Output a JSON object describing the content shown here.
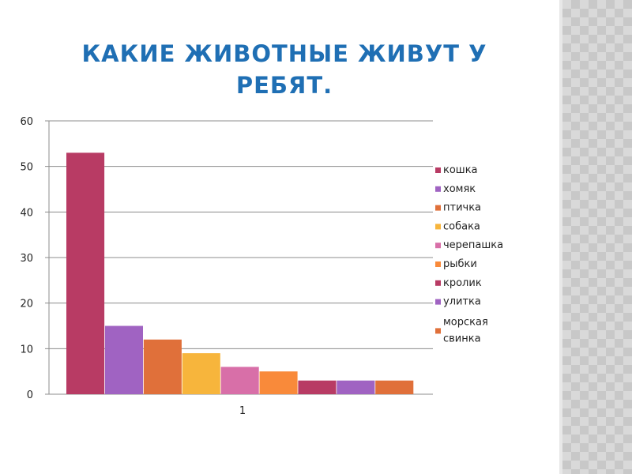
{
  "slide": {
    "title": "КАКИЕ ЖИВОТНЫЕ ЖИВУТ У РЕБЯТ."
  },
  "chart_data": {
    "type": "bar",
    "title": "КАКИЕ ЖИВОТНЫЕ ЖИВУТ У РЕБЯТ.",
    "categories": [
      "1"
    ],
    "ylim": [
      0,
      60
    ],
    "yticks": [
      0,
      10,
      20,
      30,
      40,
      50,
      60
    ],
    "grid": true,
    "legend_position": "right",
    "series": [
      {
        "name": "кошка",
        "values": [
          53
        ],
        "color": "#b83b64"
      },
      {
        "name": "хомяк",
        "values": [
          15
        ],
        "color": "#a063c2"
      },
      {
        "name": "птичка",
        "values": [
          12
        ],
        "color": "#e0703a"
      },
      {
        "name": "собака",
        "values": [
          9
        ],
        "color": "#f7b53c"
      },
      {
        "name": "черепашка",
        "values": [
          6
        ],
        "color": "#d86fa8"
      },
      {
        "name": "рыбки",
        "values": [
          5
        ],
        "color": "#f98a3a"
      },
      {
        "name": "кролик",
        "values": [
          3
        ],
        "color": "#b83b64"
      },
      {
        "name": "улитка",
        "values": [
          3
        ],
        "color": "#a063c2"
      },
      {
        "name": "морская свинка",
        "values": [
          3
        ],
        "color": "#e0703a"
      }
    ]
  }
}
